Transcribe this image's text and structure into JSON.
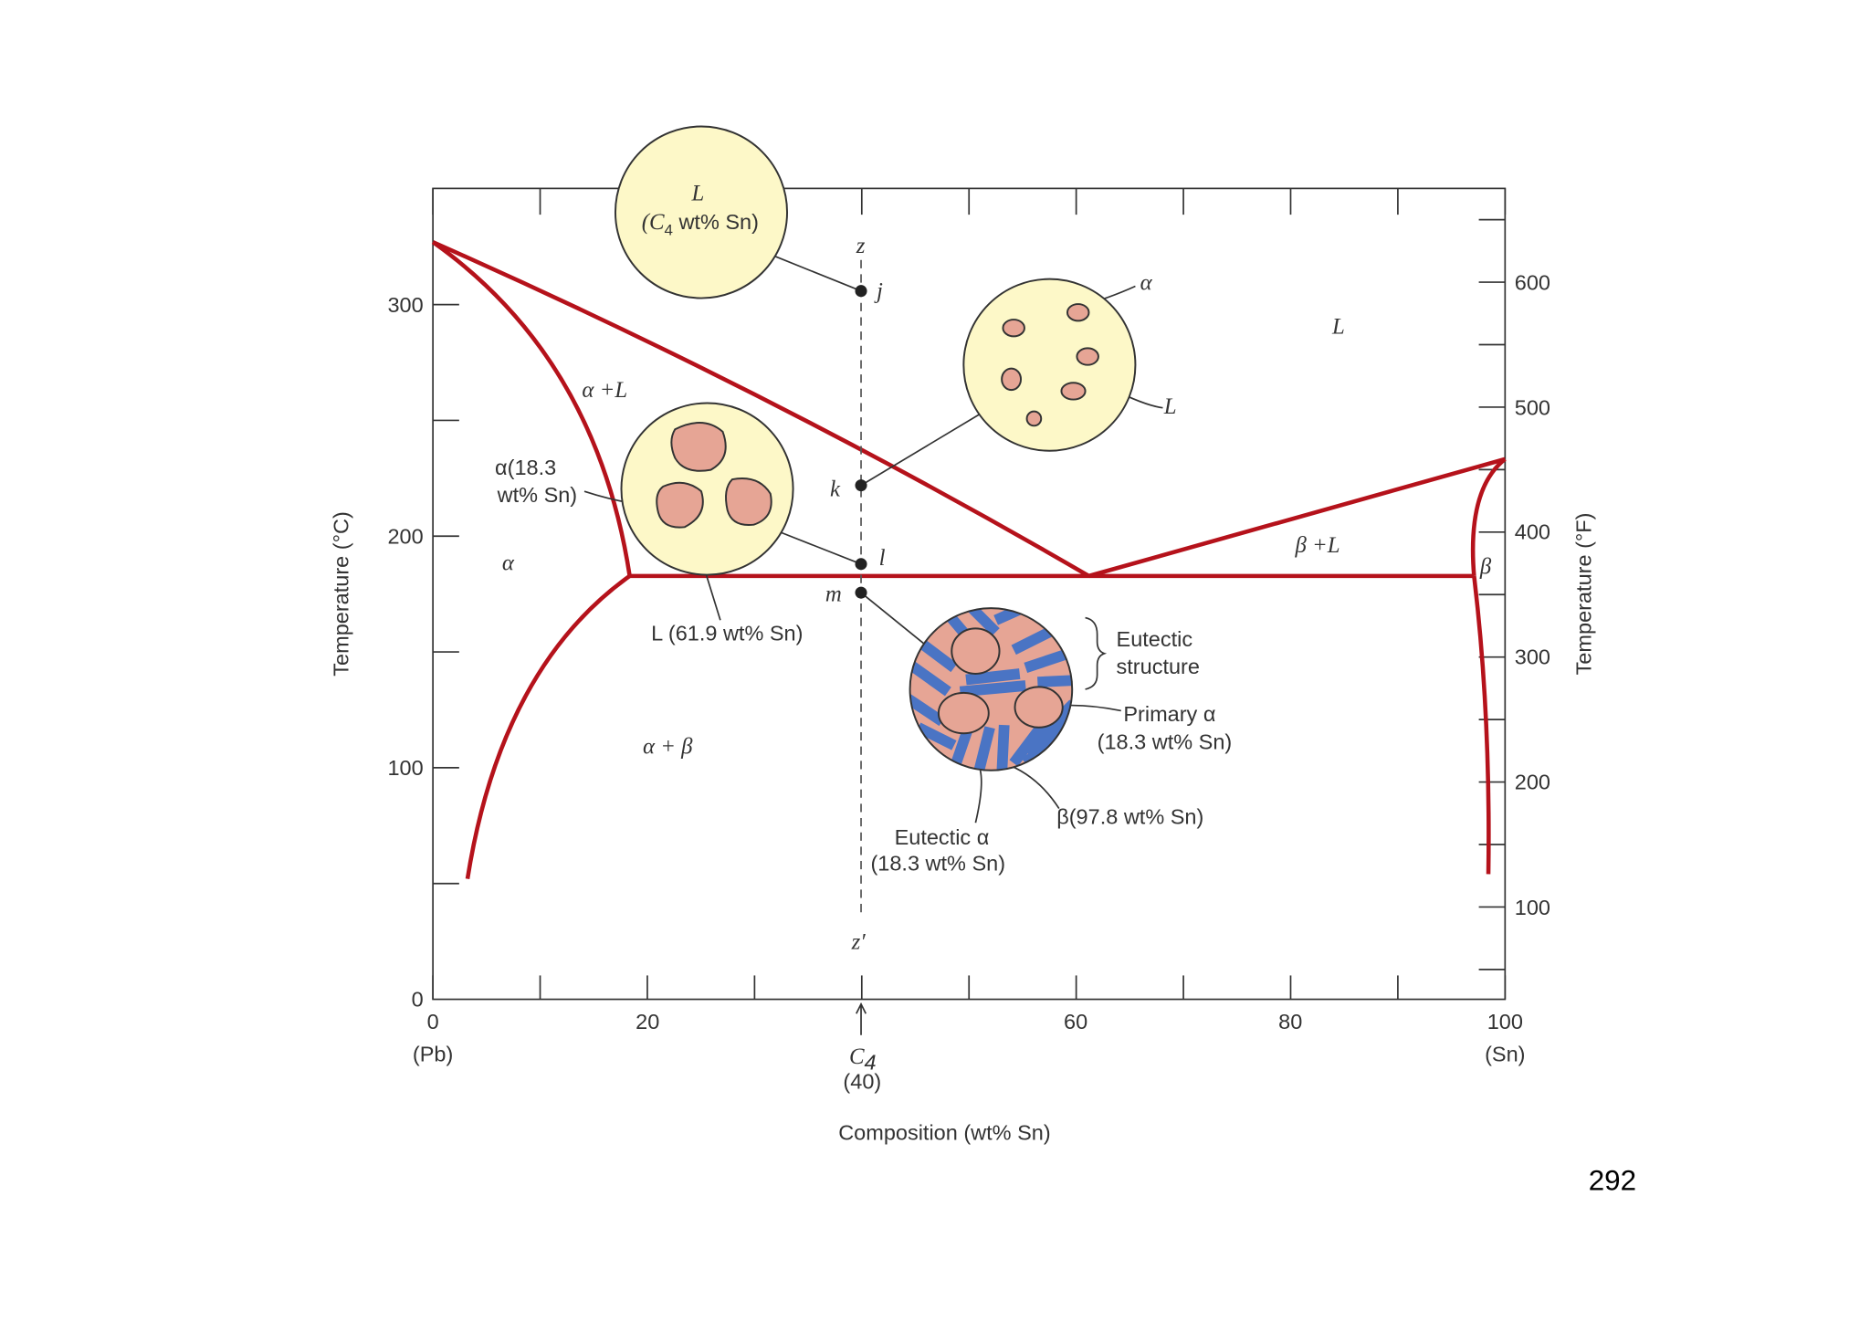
{
  "page_number": "292",
  "axes": {
    "x_label": "Composition (wt% Sn)",
    "y_label": "Temperature (°C)",
    "y2_label": "Temperature (°F)",
    "x_ticks": [
      "0",
      "20",
      "60",
      "80",
      "100"
    ],
    "x_end_labels": [
      "(Pb)",
      "(Sn)"
    ],
    "c4": {
      "symbol": "C",
      "subscript": "4",
      "value": "(40)"
    },
    "y_ticks": [
      "0",
      "100",
      "200",
      "300"
    ],
    "y2_ticks": [
      "100",
      "200",
      "300",
      "400",
      "500",
      "600"
    ]
  },
  "regions": {
    "liquid": "L",
    "alpha_liquid": "α +L",
    "alpha": "α",
    "alpha_beta": "α + β",
    "beta_liquid": "β +L",
    "beta": "β"
  },
  "points": {
    "z": "z",
    "j": "j",
    "k": "k",
    "l": "l",
    "m": "m",
    "z_prime": "z′"
  },
  "annotations": {
    "circle_j": {
      "title": "L",
      "open": "(C",
      "subscript": "4",
      "rest": " wt% Sn)"
    },
    "circle_k": {
      "alpha": "α",
      "liquid": "L"
    },
    "circle_l": {
      "alpha_line1": "α(18.3",
      "alpha_line2": "wt% Sn)",
      "liquid": "L (61.9 wt% Sn)"
    },
    "circle_m": {
      "eutectic_line1": "Eutectic",
      "eutectic_line2": "structure",
      "primary_line1": "Primary α",
      "primary_line2": "(18.3 wt% Sn)",
      "beta": "β(97.8 wt% Sn)",
      "eutectic_alpha_line1": "Eutectic α",
      "eutectic_alpha_line2": "(18.3 wt% Sn)"
    }
  }
}
